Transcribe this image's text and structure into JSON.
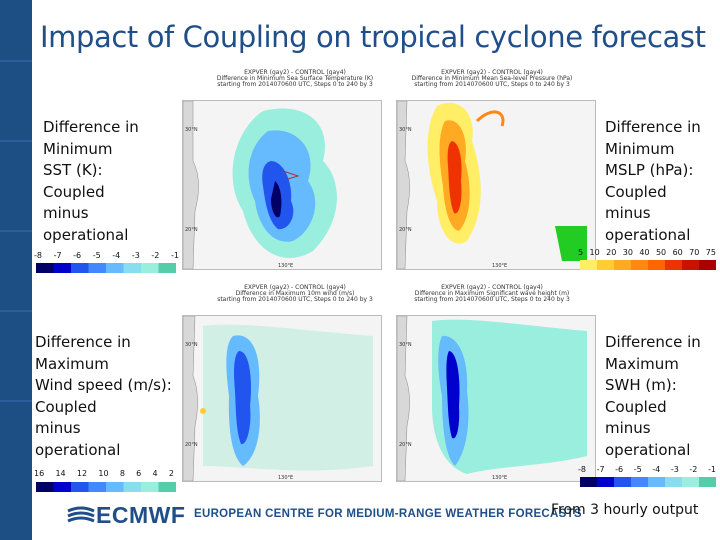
{
  "slide": {
    "title": "Impact of Coupling on tropical cyclone forecast",
    "footer_note": "From 3 hourly output"
  },
  "brand": {
    "logo_text": "ECMWF",
    "org_name": "EUROPEAN CENTRE FOR MEDIUM-RANGE WEATHER FORECASTS",
    "color": "#1f4e88"
  },
  "panels": [
    {
      "label": "Difference in\nMinimum\nSST (K):\nCoupled\nminus\noperational",
      "header_1": "EXPVER (gay2) - CONTROL (gay4)",
      "header_2": "Difference in Minimum Sea Surface Temperature (K)",
      "header_3": "starting from 2014070600 UTC, Steps 0 to 240 by 3",
      "scale_ticks": [
        "-8",
        "-7",
        "-6",
        "-5",
        "-4",
        "-3",
        "-2",
        "-1"
      ],
      "lat_top": "30°N",
      "lat_bottom": "20°N",
      "lon": "130°E"
    },
    {
      "label": "Difference in\nMinimum\nMSLP (hPa):\nCoupled\nminus\noperational",
      "header_1": "EXPVER (gay2) - CONTROL (gay4)",
      "header_2": "Difference in Minimum Mean Sea-level Pressure (hPa)",
      "header_3": "starting from 2014070600 UTC, Steps 0 to 240 by 3",
      "scale_ticks": [
        "5",
        "10",
        "20",
        "30",
        "40",
        "50",
        "60",
        "70",
        "75"
      ],
      "lat_top": "30°N",
      "lat_bottom": "20°N",
      "lon": "130°E"
    },
    {
      "label": "Difference in\nMaximum\nWind speed (m/s):\nCoupled\nminus\noperational",
      "header_1": "EXPVER (gay2) - CONTROL (gay4)",
      "header_2": "Difference in Maximum 10m wind (m/s)",
      "header_3": "starting from 2014070600 UTC, Steps 0 to 240 by 3",
      "scale_ticks": [
        "16",
        "14",
        "12",
        "10",
        "8",
        "6",
        "4",
        "2"
      ],
      "lat_top": "30°N",
      "lat_bottom": "20°N",
      "lon": "130°E"
    },
    {
      "label": "Difference in\nMaximum\nSWH (m):\nCoupled\nminus\noperational",
      "header_1": "EXPVER (gay2) - CONTROL (gay4)",
      "header_2": "Difference in Maximum Significant wave height (m)",
      "header_3": "starting from 2014070600 UTC, Steps 0 to 240 by 3",
      "scale_ticks": [
        "-8",
        "-7",
        "-6",
        "-5",
        "-4",
        "-3",
        "-2",
        "-1"
      ],
      "lat_top": "30°N",
      "lat_bottom": "20°N",
      "lon": "130°E"
    }
  ],
  "colors": {
    "cool_scale": [
      "#000066",
      "#0000cc",
      "#2255ee",
      "#4488ff",
      "#66bbff",
      "#88ddee",
      "#99eedd",
      "#55ccaa"
    ],
    "warm_scale": [
      "#ffee66",
      "#ffcc33",
      "#ffaa22",
      "#ff8811",
      "#ff6600",
      "#ee3300",
      "#cc1100",
      "#aa0000"
    ]
  }
}
